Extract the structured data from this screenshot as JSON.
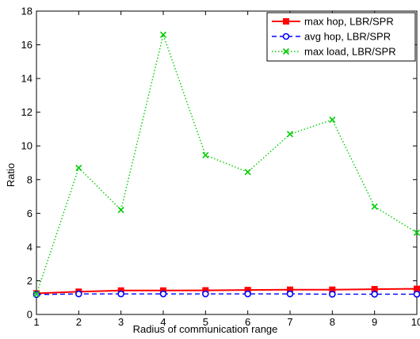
{
  "chart_data": {
    "type": "line",
    "xlabel": "Radius of communication range",
    "ylabel": "Ratio",
    "xlim": [
      1,
      10
    ],
    "ylim": [
      0,
      18
    ],
    "x": [
      1,
      2,
      3,
      4,
      5,
      6,
      7,
      8,
      9,
      10
    ],
    "x_ticks": [
      1,
      2,
      3,
      4,
      5,
      6,
      7,
      8,
      9,
      10
    ],
    "y_ticks": [
      0,
      2,
      4,
      6,
      8,
      10,
      12,
      14,
      16,
      18
    ],
    "grid": false,
    "legend_position": "top-right",
    "series": [
      {
        "name": "max hop, LBR/SPR",
        "color": "#ff0000",
        "line_style": "solid",
        "marker": "square",
        "values": [
          1.25,
          1.35,
          1.42,
          1.42,
          1.43,
          1.45,
          1.47,
          1.47,
          1.5,
          1.52
        ]
      },
      {
        "name": "avg hop, LBR/SPR",
        "color": "#0000ff",
        "line_style": "dashed",
        "marker": "circle",
        "values": [
          1.18,
          1.22,
          1.22,
          1.22,
          1.22,
          1.22,
          1.22,
          1.2,
          1.2,
          1.2
        ]
      },
      {
        "name": "max load, LBR/SPR",
        "color": "#00cc00",
        "line_style": "dotted",
        "marker": "x",
        "values": [
          1.2,
          8.7,
          6.2,
          16.6,
          9.45,
          8.45,
          10.7,
          11.55,
          6.4,
          4.85
        ]
      }
    ]
  }
}
